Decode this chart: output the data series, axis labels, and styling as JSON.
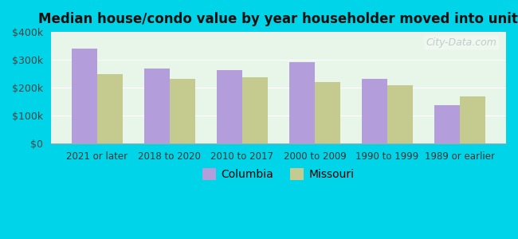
{
  "title": "Median house/condo value by year householder moved into unit",
  "categories": [
    "2021 or later",
    "2018 to 2020",
    "2010 to 2017",
    "2000 to 2009",
    "1990 to 1999",
    "1989 or earlier"
  ],
  "columbia_values": [
    340000,
    268000,
    263000,
    293000,
    232000,
    138000
  ],
  "missouri_values": [
    248000,
    232000,
    236000,
    220000,
    208000,
    170000
  ],
  "columbia_color": "#b39ddb",
  "missouri_color": "#c5ca8e",
  "bg_outer": "#00d4e8",
  "bg_chart_top": "#e8f5e9",
  "bg_chart_bottom": "#f0faf0",
  "ylim": [
    0,
    400000
  ],
  "yticks": [
    0,
    100000,
    200000,
    300000,
    400000
  ],
  "ytick_labels": [
    "$0",
    "$100k",
    "$200k",
    "$300k",
    "$400k"
  ],
  "watermark": "City-Data.com",
  "legend_columbia": "Columbia",
  "legend_missouri": "Missouri",
  "bar_width": 0.35
}
